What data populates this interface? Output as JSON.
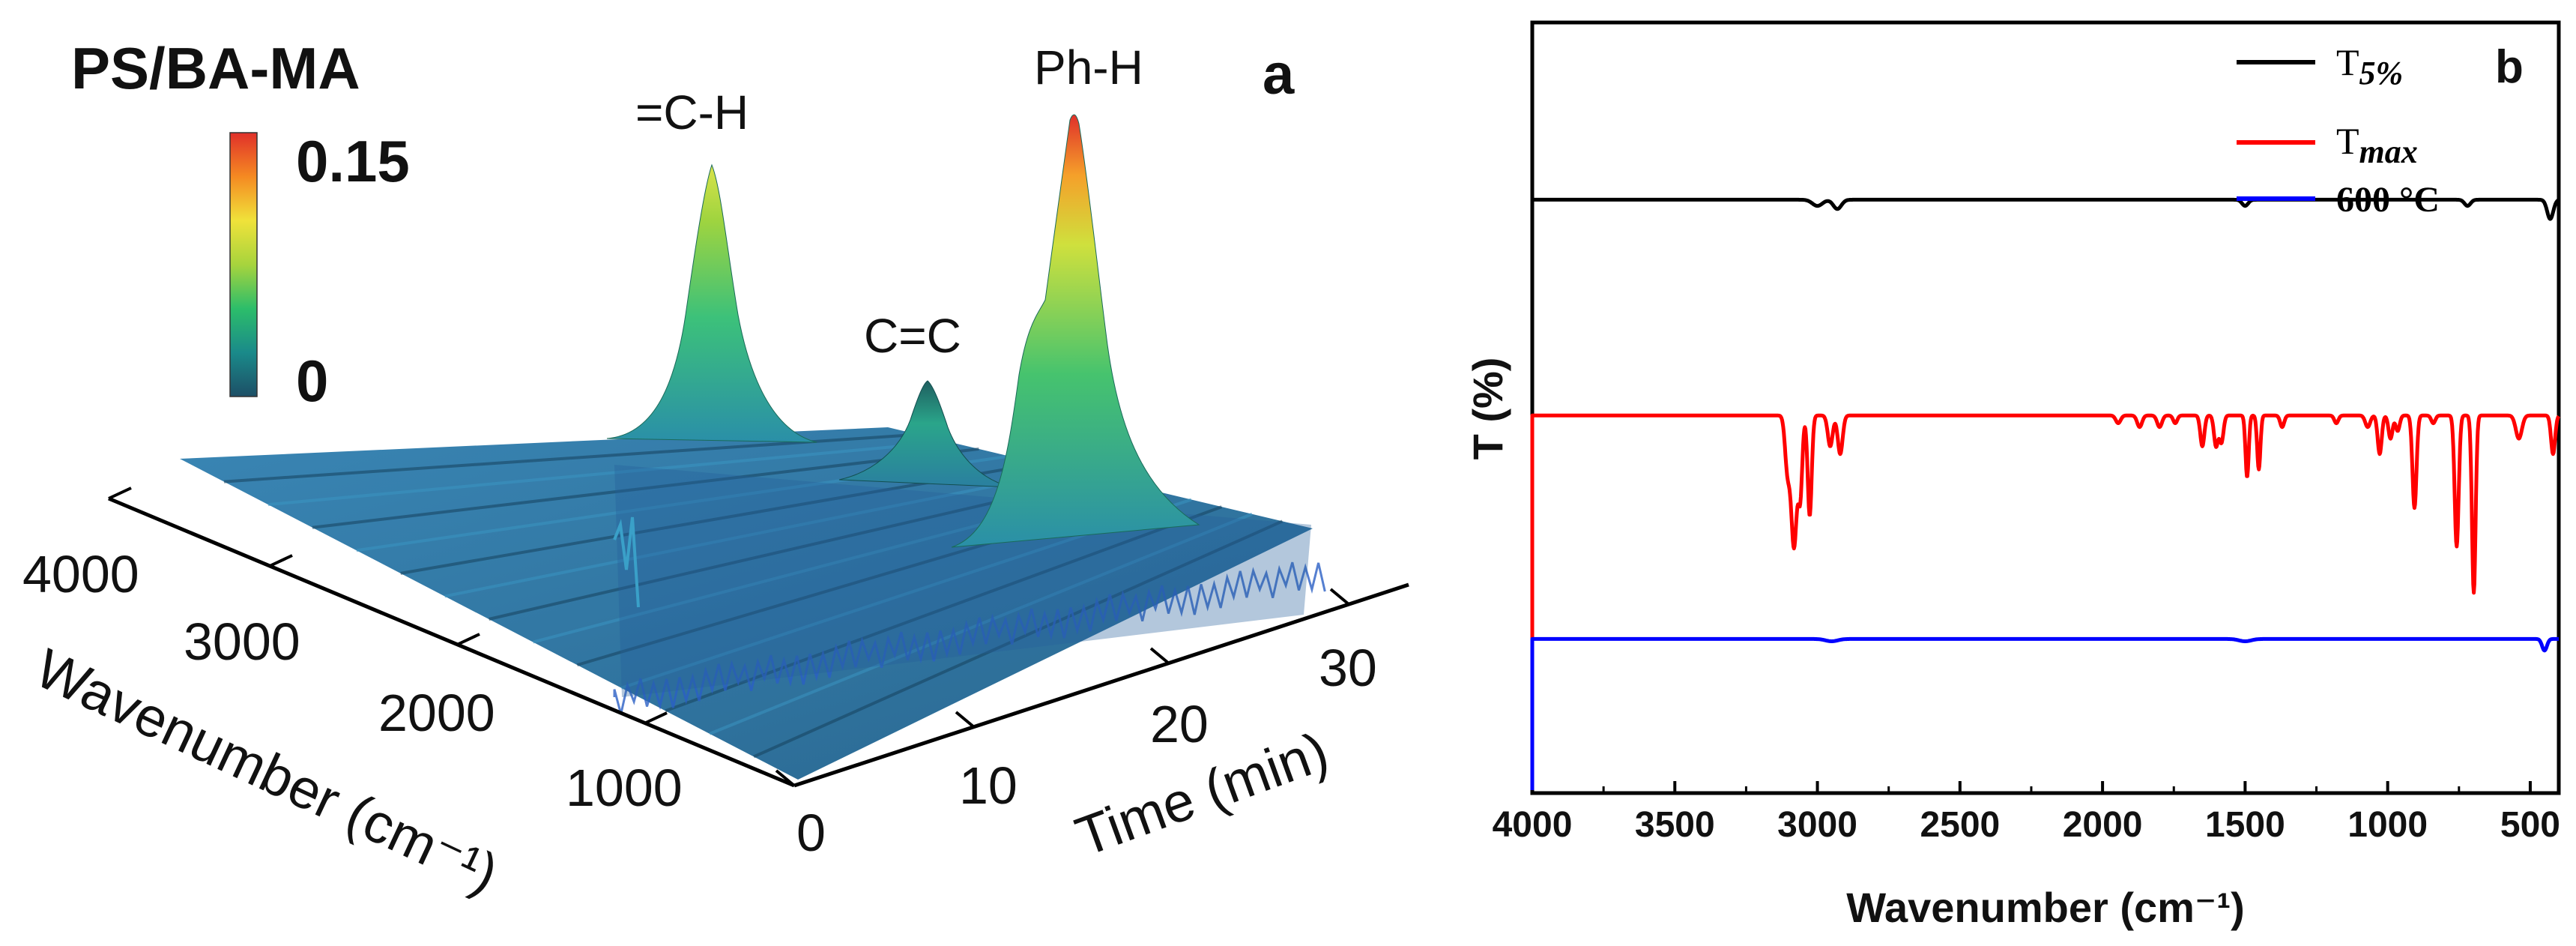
{
  "panel_a": {
    "title": "PS/BA-MA",
    "panel_label": "a",
    "colorbar": {
      "max_label": "0.15",
      "min_label": "0",
      "colors": [
        "#1d4f66",
        "#1a8a8a",
        "#2cbd6a",
        "#a7d43d",
        "#f0e23a",
        "#f58a22",
        "#e0302a"
      ]
    },
    "peak_labels": [
      "=C-H",
      "C=C",
      "Ph-H"
    ],
    "wavenumber_axis": {
      "label": "Wavenumber (cm⁻¹)",
      "ticks": [
        "4000",
        "3000",
        "2000",
        "1000"
      ]
    },
    "time_axis": {
      "label": "Time (min)",
      "ticks": [
        "0",
        "10",
        "20",
        "30"
      ]
    }
  },
  "chart_data": {
    "type": "line",
    "panel_label": "b",
    "title": "",
    "xlabel": "Wavenumber (cm⁻¹)",
    "ylabel": "T (%)",
    "xlim": [
      4000,
      400
    ],
    "ylim": [
      0,
      100
    ],
    "x_ticks": [
      4000,
      3500,
      3000,
      2500,
      2000,
      1500,
      1000,
      500
    ],
    "legend": {
      "position": "top-right",
      "entries": [
        {
          "prefix": "T",
          "sub": "5%",
          "color": "#000000"
        },
        {
          "prefix": "T",
          "sub": "max",
          "color": "#ff0000"
        },
        {
          "prefix": "",
          "sub": "",
          "text": "600 °C",
          "color": "#0000ff"
        }
      ]
    },
    "series": [
      {
        "name": "T5%",
        "color": "#000000",
        "baseline": 77,
        "dips": [
          [
            3000,
            0.8,
            25
          ],
          [
            2930,
            1.2,
            20
          ],
          [
            1500,
            0.8,
            15
          ],
          [
            720,
            0.8,
            15
          ],
          [
            430,
            2.5,
            15
          ]
        ]
      },
      {
        "name": "Tmax",
        "color": "#ff0000",
        "baseline": 49,
        "dips": [
          [
            3105,
            7.0,
            12
          ],
          [
            3082,
            17.0,
            14
          ],
          [
            3060,
            10.0,
            10
          ],
          [
            3027,
            13.0,
            10
          ],
          [
            2955,
            4.0,
            12
          ],
          [
            2920,
            5.0,
            12
          ],
          [
            1945,
            1.0,
            12
          ],
          [
            1870,
            1.5,
            12
          ],
          [
            1800,
            1.5,
            12
          ],
          [
            1745,
            1.0,
            10
          ],
          [
            1650,
            4.0,
            10
          ],
          [
            1602,
            4.0,
            10
          ],
          [
            1583,
            3.5,
            10
          ],
          [
            1493,
            8.0,
            8
          ],
          [
            1452,
            7.0,
            8
          ],
          [
            1370,
            1.5,
            10
          ],
          [
            1180,
            1.0,
            10
          ],
          [
            1070,
            1.5,
            12
          ],
          [
            1028,
            5.0,
            10
          ],
          [
            990,
            3.0,
            10
          ],
          [
            965,
            2.0,
            10
          ],
          [
            906,
            12.0,
            10
          ],
          [
            840,
            1.0,
            10
          ],
          [
            758,
            17.0,
            10
          ],
          [
            698,
            23.0,
            9
          ],
          [
            540,
            3.0,
            15
          ],
          [
            420,
            5.0,
            10
          ]
        ]
      },
      {
        "name": "600 °C",
        "color": "#0000ff",
        "baseline": 20,
        "dips": [
          [
            2950,
            0.3,
            30
          ],
          [
            1500,
            0.3,
            30
          ],
          [
            450,
            1.5,
            12
          ]
        ]
      }
    ]
  }
}
